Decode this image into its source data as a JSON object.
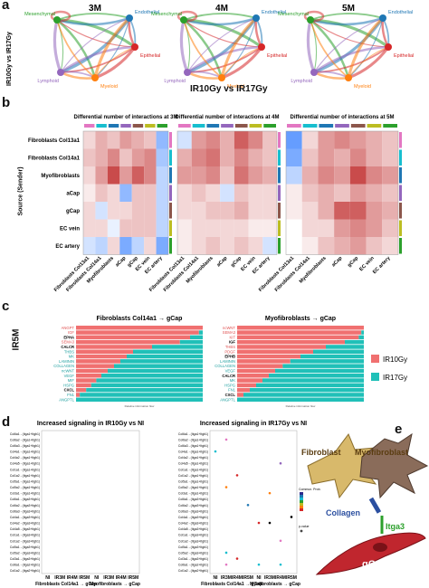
{
  "panel_labels": {
    "a": "a",
    "b": "b",
    "c": "c",
    "d": "d",
    "e": "e"
  },
  "panel_a": {
    "side_label": "IR10Gy vs IR17Gy",
    "timepoints": [
      "3M",
      "4M",
      "5M"
    ],
    "nodes": [
      {
        "name": "Mesenchymal",
        "color": "#2ca02c"
      },
      {
        "name": "Endothelial",
        "color": "#1f77b4"
      },
      {
        "name": "Epithelial",
        "color": "#d62728"
      },
      {
        "name": "Lymphoid",
        "color": "#9467bd"
      },
      {
        "name": "Myeloid",
        "color": "#ff7f0e"
      }
    ]
  },
  "panel_b": {
    "main_title": "IR10Gy vs IR17Gy",
    "y_axis_label": "Source (Sender)",
    "subtitles": [
      "Differential number of interactions at 3M",
      "Differential number of interactions at 4M",
      "Differential number of interactions at 5M"
    ],
    "rows": [
      "Fibroblasts Col13a1",
      "Fibroblasts Col14a1",
      "Myofibroblasts",
      "aCap",
      "gCap",
      "EC vein",
      "EC artery"
    ],
    "cols": [
      "Fibroblasts Col13a1",
      "Fibroblasts Col14a1",
      "Myofibroblasts",
      "aCap",
      "gCap",
      "EC vein",
      "EC artery"
    ],
    "matrices": [
      [
        [
          0.2,
          0.4,
          0.3,
          0.5,
          0.4,
          0.3,
          -0.5
        ],
        [
          0.3,
          0.4,
          0.6,
          0.3,
          0.5,
          0.6,
          -0.4
        ],
        [
          0.2,
          0.5,
          0.9,
          0.5,
          0.8,
          0.6,
          -0.3
        ],
        [
          0.1,
          0.3,
          0.2,
          -0.5,
          0.3,
          0.3,
          -0.3
        ],
        [
          0.2,
          -0.2,
          0.2,
          0.2,
          0.3,
          0.3,
          -0.3
        ],
        [
          0.2,
          0.2,
          -0.1,
          0.3,
          0.3,
          0.3,
          -0.3
        ],
        [
          -0.2,
          -0.3,
          0.2,
          -0.6,
          -0.3,
          0.2,
          -0.6
        ]
      ],
      [
        [
          -0.2,
          0.5,
          0.6,
          0.4,
          0.8,
          0.6,
          0.3
        ],
        [
          0.4,
          0.6,
          0.7,
          0.4,
          0.6,
          0.4,
          0.3
        ],
        [
          0.5,
          0.5,
          0.6,
          0.3,
          0.7,
          0.5,
          0.4
        ],
        [
          0.2,
          0.3,
          0.2,
          -0.2,
          0.3,
          0.2,
          0.2
        ],
        [
          0.2,
          0.2,
          0.3,
          0.3,
          0.4,
          0.2,
          0.2
        ],
        [
          0.1,
          0.2,
          0.2,
          0.2,
          0.2,
          0.1,
          0.1
        ],
        [
          0.1,
          0.2,
          0.3,
          0.2,
          0.3,
          0.2,
          -0.2
        ]
      ],
      [
        [
          -0.7,
          0.2,
          0.5,
          0.6,
          0.5,
          0.4,
          0.3
        ],
        [
          -0.6,
          0.3,
          0.5,
          0.4,
          0.6,
          0.4,
          0.3
        ],
        [
          -0.3,
          0.4,
          0.6,
          0.5,
          0.9,
          0.6,
          0.5
        ],
        [
          0.1,
          0.3,
          0.4,
          0.3,
          0.5,
          0.4,
          0.3
        ],
        [
          0.1,
          0.2,
          0.4,
          0.8,
          0.8,
          0.5,
          0.4
        ],
        [
          0.0,
          0.2,
          0.2,
          0.5,
          0.6,
          0.5,
          0.3
        ],
        [
          0.0,
          0.1,
          0.3,
          0.4,
          0.5,
          0.3,
          0.2
        ]
      ]
    ],
    "col_colors": [
      "#e377c2",
      "#17becf",
      "#1f77b4",
      "#9467bd",
      "#8c564b",
      "#bcbd22",
      "#2ca02c"
    ]
  },
  "panel_c": {
    "side_label": "IR5M",
    "left_title": "Fibroblasts Col14a1 → gCap",
    "right_title": "Myofibroblasts → gCap",
    "axis_note": "Relative information flow",
    "legend": [
      {
        "label": "IR10Gy",
        "color": "#f07070"
      },
      {
        "label": "IR17Gy",
        "color": "#20c0b8"
      }
    ],
    "left_bars": [
      {
        "label": "ANGPT",
        "frac": 1.0,
        "color": "#e05050"
      },
      {
        "label": "IGF",
        "frac": 0.97,
        "color": "#e05050"
      },
      {
        "label": "EPHA",
        "frac": 0.9,
        "color": "#000000"
      },
      {
        "label": "SEMA3",
        "frac": 0.82,
        "color": "#e05050"
      },
      {
        "label": "CALCR",
        "frac": 0.6,
        "color": "#000000"
      },
      {
        "label": "THBS",
        "frac": 0.45,
        "color": "#20a0a0"
      },
      {
        "label": "MK",
        "frac": 0.4,
        "color": "#20a0a0"
      },
      {
        "label": "LAMININ",
        "frac": 0.35,
        "color": "#20a0a0"
      },
      {
        "label": "COLLAGEN",
        "frac": 0.3,
        "color": "#20a0a0"
      },
      {
        "label": "ncWNT",
        "frac": 0.25,
        "color": "#20a0a0"
      },
      {
        "label": "VEGF",
        "frac": 0.2,
        "color": "#20a0a0"
      },
      {
        "label": "MIF",
        "frac": 0.16,
        "color": "#20a0a0"
      },
      {
        "label": "HSPG",
        "frac": 0.12,
        "color": "#20a0a0"
      },
      {
        "label": "CXCL",
        "frac": 0.08,
        "color": "#000000"
      },
      {
        "label": "FN1",
        "frac": 0.03,
        "color": "#20a0a0"
      },
      {
        "label": "ANGPTL",
        "frac": 0.0,
        "color": "#20a0a0"
      }
    ],
    "right_bars": [
      {
        "label": "ncWNT",
        "frac": 1.0,
        "color": "#e05050"
      },
      {
        "label": "SEMA3",
        "frac": 0.98,
        "color": "#e05050"
      },
      {
        "label": "KIT",
        "frac": 0.96,
        "color": "#e05050"
      },
      {
        "label": "IGF",
        "frac": 0.85,
        "color": "#000000"
      },
      {
        "label": "THBS",
        "frac": 0.7,
        "color": "#e05050"
      },
      {
        "label": "PDGF",
        "frac": 0.6,
        "color": "#e05050"
      },
      {
        "label": "EPHB",
        "frac": 0.5,
        "color": "#000000"
      },
      {
        "label": "LAMININ",
        "frac": 0.42,
        "color": "#20a0a0"
      },
      {
        "label": "COLLAGEN",
        "frac": 0.36,
        "color": "#20a0a0"
      },
      {
        "label": "VEGF",
        "frac": 0.3,
        "color": "#20a0a0"
      },
      {
        "label": "CALCR",
        "frac": 0.25,
        "color": "#000000"
      },
      {
        "label": "MK",
        "frac": 0.2,
        "color": "#20a0a0"
      },
      {
        "label": "HSPG",
        "frac": 0.15,
        "color": "#20a0a0"
      },
      {
        "label": "FN1",
        "frac": 0.1,
        "color": "#20a0a0"
      },
      {
        "label": "CXCL",
        "frac": 0.05,
        "color": "#000000"
      },
      {
        "label": "ANGPTL",
        "frac": 0.0,
        "color": "#20a0a0"
      }
    ]
  },
  "panel_d": {
    "left_title": "Increased signaling in IR10Gy vs NI",
    "right_title": "Increased signaling in IR17Gy vs NI",
    "row_labels": [
      "Col6a1 - (Itga1+Itgb1)",
      "Col6a2 - (Itga1+Itgb1)",
      "Col6a3 - (Itga1+Itgb1)",
      "Col4a1 - (Itga1+Itgb1)",
      "Col4a2 - (Itga1+Itgb1)",
      "Col4a5 - (Itga1+Itgb1)",
      "Col1a1 - (Itga1+Itgb1)",
      "Col1a2 - (Itga1+Itgb1)",
      "Col5a1 - (Itga1+Itgb1)",
      "Col5a2 - (Itga1+Itgb1)",
      "Col3a1 - (Itga1+Itgb1)",
      "Col6a1 - (Itga3+Itgb1)",
      "Col6a2 - (Itga3+Itgb1)",
      "Col6a3 - (Itga3+Itgb1)",
      "Col4a1 - (Itga3+Itgb1)",
      "Col4a2 - (Itga3+Itgb1)",
      "Col4a5 - (Itga3+Itgb1)",
      "Col1a1 - (Itga3+Itgb1)",
      "Col1a2 - (Itga3+Itgb1)",
      "Col5a1 - (Itga3+Itgb1)",
      "Col5a2 - (Itga3+Itgb1)",
      "Col3a1 - (Itga3+Itgb1)",
      "Col6a1 - (Itga2+Itgb1)",
      "Col1a2 - (Itga2+Itgb1)"
    ],
    "x_labels": [
      "NI",
      "IR3M",
      "IR4M",
      "IR5M",
      "NI",
      "IR3M",
      "IR4M",
      "IR5M"
    ],
    "group_labels": [
      "Fibroblasts Col14a1 → gCap",
      "Myofibroblasts → gCap"
    ],
    "legend_title": "Commun. Prob.",
    "pvalue_label": "p-value",
    "dots": [
      [
        1,
        1,
        "#e377c2"
      ],
      [
        3,
        0,
        "#17becf"
      ],
      [
        7,
        2,
        "#d62728"
      ],
      [
        9,
        1,
        "#ff7f0e"
      ],
      [
        12,
        3,
        "#1f77b4"
      ],
      [
        15,
        4,
        "#d62728"
      ],
      [
        15,
        5,
        "#000000"
      ],
      [
        18,
        6,
        "#e377c2"
      ],
      [
        20,
        1,
        "#17becf"
      ],
      [
        21,
        2,
        "#d62728"
      ],
      [
        22,
        1,
        "#e377c2"
      ],
      [
        22,
        4,
        "#17becf"
      ],
      [
        22,
        6,
        "#17becf"
      ],
      [
        10,
        5,
        "#ff7f0e"
      ],
      [
        5,
        6,
        "#9467bd"
      ],
      [
        14,
        7,
        "#000000"
      ]
    ]
  },
  "panel_e": {
    "fibroblast": "Fibroblast",
    "myofibroblast": "Myofibroblast",
    "collagen": "Collagen",
    "itga3": "Itga3",
    "gcap": "gCap"
  }
}
